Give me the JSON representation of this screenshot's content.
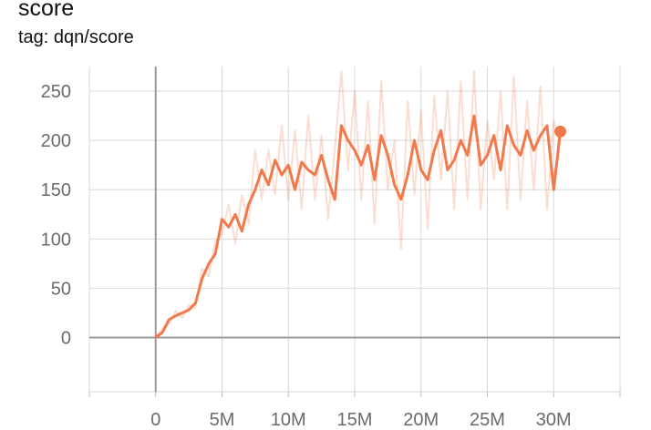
{
  "card": {
    "title": "score",
    "tag": "tag: dqn/score"
  },
  "chart_data": {
    "type": "line",
    "xlabel": "",
    "ylabel": "",
    "xlim": [
      -5000000,
      35000000
    ],
    "ylim": [
      -55,
      275
    ],
    "x_ticks": [
      0,
      5000000,
      10000000,
      15000000,
      20000000,
      25000000,
      30000000
    ],
    "x_tick_labels": [
      "0",
      "5M",
      "10M",
      "15M",
      "20M",
      "25M",
      "30M"
    ],
    "y_ticks": [
      0,
      50,
      100,
      150,
      200,
      250
    ],
    "y_tick_labels": [
      "0",
      "50",
      "100",
      "150",
      "200",
      "250"
    ],
    "grid": true,
    "legend": "none",
    "series": [
      {
        "style": "smoothed",
        "color": "#f07a4b",
        "x": [
          0,
          500000,
          1000000,
          1500000,
          2000000,
          2500000,
          3000000,
          3500000,
          4000000,
          4500000,
          5000000,
          5500000,
          6000000,
          6500000,
          7000000,
          7500000,
          8000000,
          8500000,
          9000000,
          9500000,
          10000000,
          10500000,
          11000000,
          11500000,
          12000000,
          12500000,
          13000000,
          13500000,
          14000000,
          14500000,
          15000000,
          15500000,
          16000000,
          16500000,
          17000000,
          17500000,
          18000000,
          18500000,
          19000000,
          19500000,
          20000000,
          20500000,
          21000000,
          21500000,
          22000000,
          22500000,
          23000000,
          23500000,
          24000000,
          24500000,
          25000000,
          25500000,
          26000000,
          26500000,
          27000000,
          27500000,
          28000000,
          28500000,
          29000000,
          29500000,
          30000000,
          30500000
        ],
        "y": [
          0,
          5,
          18,
          22,
          25,
          28,
          35,
          60,
          75,
          85,
          120,
          112,
          125,
          108,
          135,
          150,
          170,
          155,
          180,
          165,
          175,
          150,
          178,
          170,
          165,
          185,
          160,
          140,
          215,
          200,
          190,
          175,
          195,
          160,
          205,
          185,
          155,
          140,
          165,
          200,
          170,
          160,
          190,
          210,
          170,
          180,
          200,
          185,
          225,
          175,
          185,
          205,
          170,
          215,
          195,
          185,
          210,
          190,
          205,
          215,
          150,
          209
        ]
      },
      {
        "style": "raw",
        "color": "#f07a4b",
        "x": [
          0,
          500000,
          1000000,
          1500000,
          2000000,
          2500000,
          3000000,
          3500000,
          4000000,
          4500000,
          5000000,
          5500000,
          6000000,
          6500000,
          7000000,
          7500000,
          8000000,
          8500000,
          9000000,
          9500000,
          10000000,
          10500000,
          11000000,
          11500000,
          12000000,
          12500000,
          13000000,
          13500000,
          14000000,
          14500000,
          15000000,
          15500000,
          16000000,
          16500000,
          17000000,
          17500000,
          18000000,
          18500000,
          19000000,
          19500000,
          20000000,
          20500000,
          21000000,
          21500000,
          22000000,
          22500000,
          23000000,
          23500000,
          24000000,
          24500000,
          25000000,
          25500000,
          26000000,
          26500000,
          27000000,
          27500000,
          28000000,
          28500000,
          29000000,
          29500000,
          30000000,
          30500000
        ],
        "y": [
          0,
          9,
          14,
          27,
          20,
          33,
          30,
          70,
          62,
          98,
          105,
          135,
          95,
          145,
          115,
          190,
          140,
          190,
          145,
          215,
          140,
          210,
          130,
          225,
          140,
          205,
          120,
          190,
          270,
          170,
          250,
          140,
          240,
          115,
          260,
          150,
          200,
          90,
          240,
          145,
          230,
          110,
          245,
          160,
          250,
          130,
          260,
          140,
          270,
          130,
          220,
          160,
          250,
          130,
          265,
          140,
          240,
          150,
          255,
          130,
          220,
          195
        ]
      }
    ],
    "last_point": {
      "x": 30500000,
      "y": 209
    }
  }
}
